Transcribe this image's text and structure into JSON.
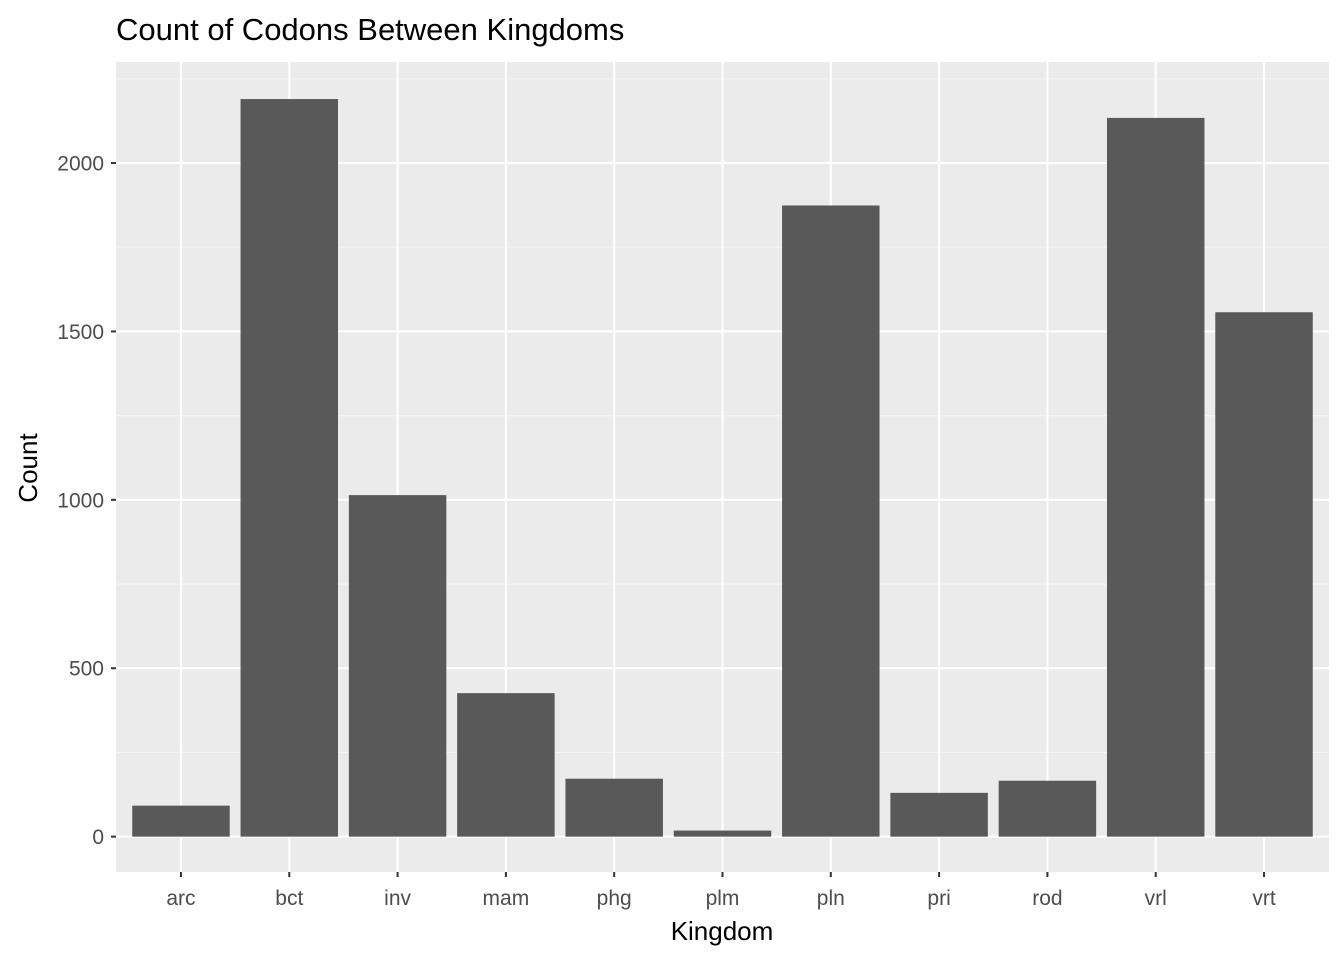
{
  "chart_data": {
    "type": "bar",
    "title": "Count of Codons Between Kingdoms",
    "xlabel": "Kingdom",
    "ylabel": "Count",
    "categories": [
      "arc",
      "bct",
      "inv",
      "mam",
      "phg",
      "plm",
      "pln",
      "pri",
      "rod",
      "vrl",
      "vrt"
    ],
    "values": [
      92,
      2190,
      1014,
      426,
      172,
      18,
      1874,
      130,
      166,
      2134,
      1557
    ],
    "ylim": [
      -105,
      2300
    ],
    "yticks": [
      0,
      500,
      1000,
      1500,
      2000
    ],
    "ytick_labels": [
      "0",
      "500",
      "1000",
      "1500",
      "2000"
    ],
    "grid": true,
    "colors": {
      "bar": "#595959",
      "panel_background": "#ebebeb",
      "grid_major": "#ffffff",
      "grid_minor": "#f5f5f5",
      "tick_label": "#4d4d4d",
      "tick_mark": "#333333",
      "text": "#000000"
    }
  }
}
